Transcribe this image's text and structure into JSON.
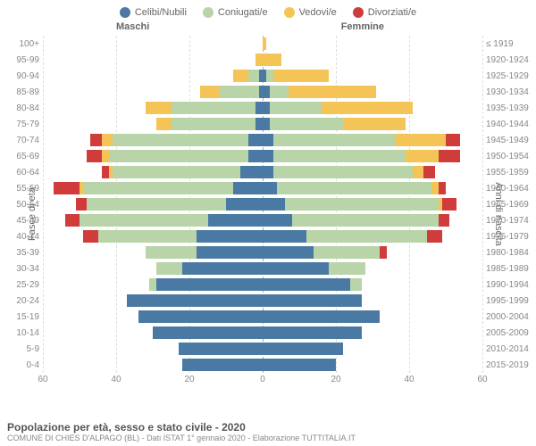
{
  "legend": [
    {
      "label": "Celibi/Nubili",
      "color": "#4a7aa3"
    },
    {
      "label": "Coniugati/e",
      "color": "#b8d4a8"
    },
    {
      "label": "Vedovi/e",
      "color": "#f4c456"
    },
    {
      "label": "Divorziati/e",
      "color": "#d03c3c"
    }
  ],
  "headers": {
    "left": "Maschi",
    "right": "Femmine"
  },
  "y_axis_left": {
    "title": "Fasce di età"
  },
  "y_axis_right": {
    "title": "Anni di nascita"
  },
  "x_axis": {
    "max": 60,
    "ticks": [
      60,
      40,
      20,
      0,
      20,
      40,
      60
    ]
  },
  "footer": {
    "title": "Popolazione per età, sesso e stato civile - 2020",
    "subtitle": "COMUNE DI CHIES D'ALPAGO (BL) - Dati ISTAT 1° gennaio 2020 - Elaborazione TUTTITALIA.IT"
  },
  "colors": {
    "celibi": "#4a7aa3",
    "coniugati": "#b8d4a8",
    "vedovi": "#f4c456",
    "divorziati": "#d03c3c",
    "grid": "#dddddd",
    "center": "#aaaaaa",
    "text": "#888888"
  },
  "rows": [
    {
      "age": "0-4",
      "birth": "2015-2019",
      "m": {
        "c": 22,
        "co": 0,
        "v": 0,
        "d": 0
      },
      "f": {
        "c": 20,
        "co": 0,
        "v": 0,
        "d": 0
      }
    },
    {
      "age": "5-9",
      "birth": "2010-2014",
      "m": {
        "c": 23,
        "co": 0,
        "v": 0,
        "d": 0
      },
      "f": {
        "c": 22,
        "co": 0,
        "v": 0,
        "d": 0
      }
    },
    {
      "age": "10-14",
      "birth": "2005-2009",
      "m": {
        "c": 30,
        "co": 0,
        "v": 0,
        "d": 0
      },
      "f": {
        "c": 27,
        "co": 0,
        "v": 0,
        "d": 0
      }
    },
    {
      "age": "15-19",
      "birth": "2000-2004",
      "m": {
        "c": 34,
        "co": 0,
        "v": 0,
        "d": 0
      },
      "f": {
        "c": 32,
        "co": 0,
        "v": 0,
        "d": 0
      }
    },
    {
      "age": "20-24",
      "birth": "1995-1999",
      "m": {
        "c": 37,
        "co": 0,
        "v": 0,
        "d": 0
      },
      "f": {
        "c": 27,
        "co": 0,
        "v": 0,
        "d": 0
      }
    },
    {
      "age": "25-29",
      "birth": "1990-1994",
      "m": {
        "c": 29,
        "co": 2,
        "v": 0,
        "d": 0
      },
      "f": {
        "c": 24,
        "co": 3,
        "v": 0,
        "d": 0
      }
    },
    {
      "age": "30-34",
      "birth": "1985-1989",
      "m": {
        "c": 22,
        "co": 7,
        "v": 0,
        "d": 0
      },
      "f": {
        "c": 18,
        "co": 10,
        "v": 0,
        "d": 0
      }
    },
    {
      "age": "35-39",
      "birth": "1980-1984",
      "m": {
        "c": 18,
        "co": 14,
        "v": 0,
        "d": 0
      },
      "f": {
        "c": 14,
        "co": 18,
        "v": 0,
        "d": 2
      }
    },
    {
      "age": "40-44",
      "birth": "1975-1979",
      "m": {
        "c": 18,
        "co": 27,
        "v": 0,
        "d": 4
      },
      "f": {
        "c": 12,
        "co": 33,
        "v": 0,
        "d": 4
      }
    },
    {
      "age": "45-49",
      "birth": "1970-1974",
      "m": {
        "c": 15,
        "co": 35,
        "v": 0,
        "d": 4
      },
      "f": {
        "c": 8,
        "co": 40,
        "v": 0,
        "d": 3
      }
    },
    {
      "age": "50-54",
      "birth": "1965-1969",
      "m": {
        "c": 10,
        "co": 38,
        "v": 0,
        "d": 3
      },
      "f": {
        "c": 6,
        "co": 42,
        "v": 1,
        "d": 4
      }
    },
    {
      "age": "55-59",
      "birth": "1960-1964",
      "m": {
        "c": 8,
        "co": 41,
        "v": 1,
        "d": 7
      },
      "f": {
        "c": 4,
        "co": 42,
        "v": 2,
        "d": 2
      }
    },
    {
      "age": "60-64",
      "birth": "1955-1959",
      "m": {
        "c": 6,
        "co": 35,
        "v": 1,
        "d": 2
      },
      "f": {
        "c": 3,
        "co": 38,
        "v": 3,
        "d": 3
      }
    },
    {
      "age": "65-69",
      "birth": "1950-1954",
      "m": {
        "c": 4,
        "co": 38,
        "v": 2,
        "d": 4
      },
      "f": {
        "c": 3,
        "co": 36,
        "v": 9,
        "d": 6
      }
    },
    {
      "age": "70-74",
      "birth": "1945-1949",
      "m": {
        "c": 4,
        "co": 37,
        "v": 3,
        "d": 3
      },
      "f": {
        "c": 3,
        "co": 33,
        "v": 14,
        "d": 4
      }
    },
    {
      "age": "75-79",
      "birth": "1940-1944",
      "m": {
        "c": 2,
        "co": 23,
        "v": 4,
        "d": 0
      },
      "f": {
        "c": 2,
        "co": 20,
        "v": 17,
        "d": 0
      }
    },
    {
      "age": "80-84",
      "birth": "1935-1939",
      "m": {
        "c": 2,
        "co": 23,
        "v": 7,
        "d": 0
      },
      "f": {
        "c": 2,
        "co": 14,
        "v": 25,
        "d": 0
      }
    },
    {
      "age": "85-89",
      "birth": "1930-1934",
      "m": {
        "c": 1,
        "co": 11,
        "v": 5,
        "d": 0
      },
      "f": {
        "c": 2,
        "co": 5,
        "v": 24,
        "d": 0
      }
    },
    {
      "age": "90-94",
      "birth": "1925-1929",
      "m": {
        "c": 1,
        "co": 3,
        "v": 4,
        "d": 0
      },
      "f": {
        "c": 1,
        "co": 2,
        "v": 15,
        "d": 0
      }
    },
    {
      "age": "95-99",
      "birth": "1920-1924",
      "m": {
        "c": 0,
        "co": 0,
        "v": 2,
        "d": 0
      },
      "f": {
        "c": 0,
        "co": 0,
        "v": 5,
        "d": 0
      }
    },
    {
      "age": "100+",
      "birth": "≤ 1919",
      "m": {
        "c": 0,
        "co": 0,
        "v": 0,
        "d": 0
      },
      "f": {
        "c": 0,
        "co": 0,
        "v": 1,
        "d": 0
      }
    }
  ]
}
